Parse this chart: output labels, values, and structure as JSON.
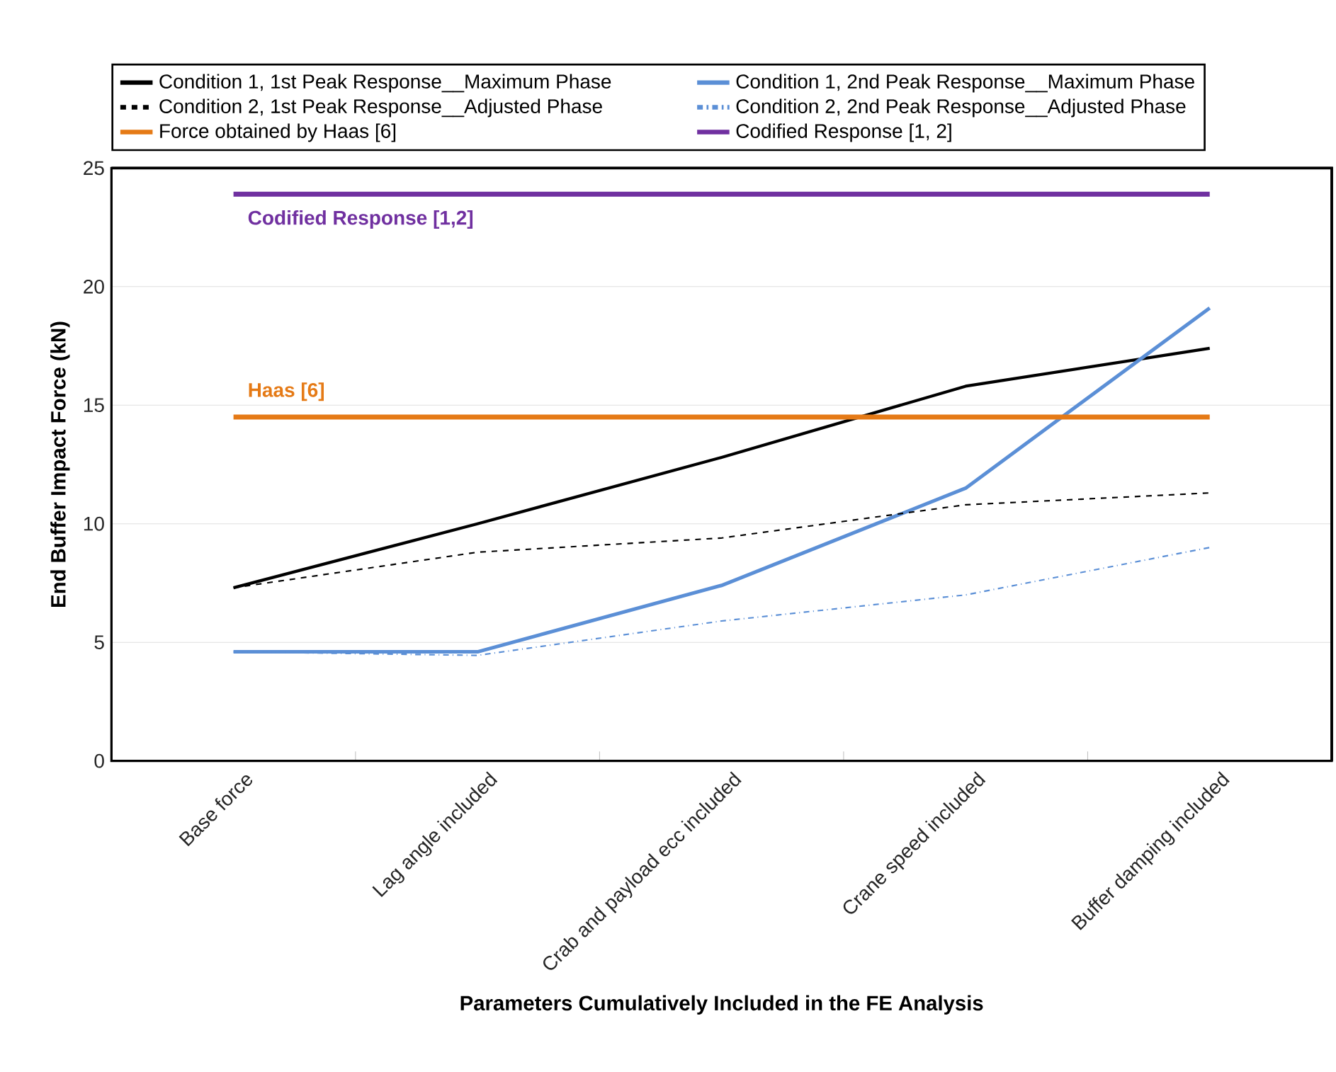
{
  "chart_data": {
    "type": "line",
    "xlabel": "Parameters Cumulatively Included in the FE Analysis",
    "ylabel": "End Buffer Impact Force (kN)",
    "categories": [
      "Base force",
      "Lag angle included",
      "Crab and payload ecc included",
      "Crane speed included",
      "Buffer damping included"
    ],
    "series": [
      {
        "name": "Condition 1,   1st Peak Response__Maximum Phase",
        "color": "#000000",
        "line_style": "solid",
        "values": [
          7.3,
          10.0,
          12.8,
          15.8,
          17.4
        ]
      },
      {
        "name": "Condition 1,   2nd Peak Response__Maximum Phase",
        "color": "#5b8fd6",
        "line_style": "solid",
        "values": [
          4.6,
          4.6,
          7.4,
          11.5,
          19.1
        ]
      },
      {
        "name": "Condition 2,   1st Peak Response__Adjusted Phase",
        "color": "#000000",
        "line_style": "dashed",
        "values": [
          7.3,
          8.8,
          9.4,
          10.8,
          11.3
        ]
      },
      {
        "name": "Condition 2,   2nd Peak Response__Adjusted Phase",
        "color": "#5b8fd6",
        "line_style": "dashdot",
        "values": [
          4.6,
          4.45,
          5.9,
          7.0,
          9.0
        ]
      },
      {
        "name": "Force obtained by Haas [6]",
        "color": "#e57a16",
        "line_style": "solid",
        "values": [
          14.5,
          14.5,
          14.5,
          14.5,
          14.5
        ]
      },
      {
        "name": "Codified Response [1, 2]",
        "color": "#7030a0",
        "line_style": "solid",
        "values": [
          23.9,
          23.9,
          23.9,
          23.9,
          23.9
        ]
      }
    ],
    "annotations": [
      "Codified Response [1,2]",
      "Haas [6]"
    ],
    "ylim": [
      0,
      25
    ],
    "yticks": [
      0,
      5,
      10,
      15,
      20,
      25
    ],
    "grid": "y",
    "legend": "top",
    "marker": "none"
  }
}
